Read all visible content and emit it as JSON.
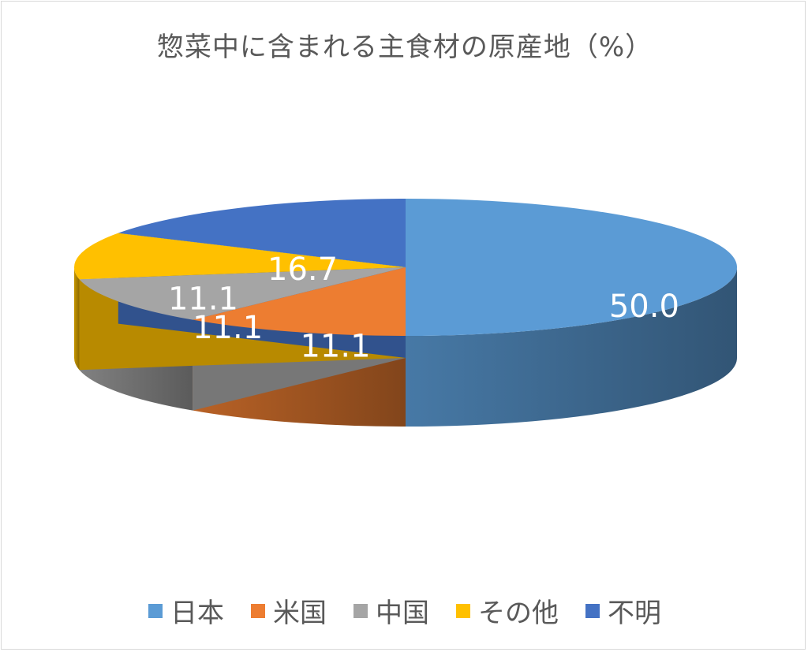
{
  "chart_data": {
    "type": "pie",
    "title": "惣菜中に含まれる主食材の原産地（%）",
    "categories": [
      "日本",
      "米国",
      "中国",
      "その他",
      "不明"
    ],
    "values": [
      50.0,
      11.1,
      11.1,
      11.1,
      16.7
    ],
    "data_labels": [
      "50.0",
      "11.1",
      "11.1",
      "11.1",
      "16.7"
    ],
    "colors": [
      "#5b9bd5",
      "#ed7d31",
      "#a5a5a5",
      "#ffc000",
      "#4472c4"
    ],
    "style": "3d",
    "legend_position": "bottom"
  }
}
